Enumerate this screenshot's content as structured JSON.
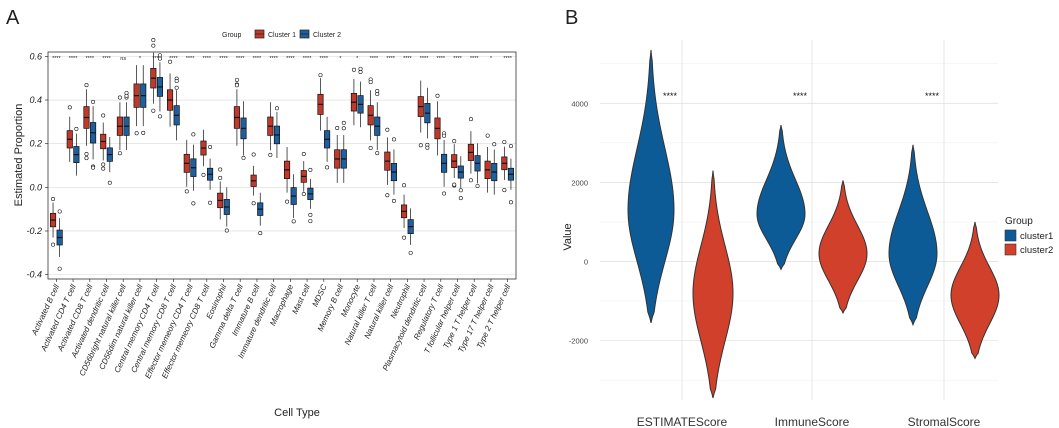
{
  "panels": {
    "a_label": "A",
    "b_label": "B"
  },
  "colors": {
    "cluster1": "#C0392B",
    "cluster2": "#1F5F9E",
    "violet1": "#0D5B96",
    "violet2": "#D0402B"
  },
  "chart_data": [
    {
      "type": "box",
      "panel": "A",
      "title": "",
      "xlabel": "Cell Type",
      "ylabel": "Estimated Proportion",
      "ylim": [
        -0.42,
        0.62
      ],
      "yticks": [
        -0.4,
        -0.2,
        0.0,
        0.2,
        0.4,
        0.6
      ],
      "ytick_labels": [
        "-0.4",
        "-0.2",
        "0.0",
        "0.2",
        "0.4",
        "0.6"
      ],
      "legend": {
        "title": "Group",
        "entries": [
          "Cluster 1",
          "Cluster 2"
        ],
        "position": "top"
      },
      "categories": [
        "Activated B cell",
        "Activated CD4 T cell",
        "Activated CD8 T cell",
        "Activated dendritic cell",
        "CD56bright natural killer cell",
        "CD56dim natural killer cell",
        "Central memory CD4 T cell",
        "Central memory CD8 T cell",
        "Effector memeory CD4 T cell",
        "Effector memeory CD8 T cell",
        "Eosinophil",
        "Gamma delta T cell",
        "Immature  B cell",
        "Immature dendritic cell",
        "Macrophage",
        "Mast cell",
        "MDSC",
        "Memory B cell",
        "Monocyte",
        "Natural killer T cell",
        "Natural killer cell",
        "Neutrophil",
        "Plasmacytoid dendritic cell",
        "Regulatory T cell",
        "T follicular helper cell",
        "Type 1 T helper cell",
        "Type 17 T helper cell",
        "Type 2 T helper cell"
      ],
      "significance": [
        "****",
        "****",
        "****",
        "****",
        "ns",
        "*",
        "****",
        "****",
        "****",
        "****",
        "****",
        "****",
        "****",
        "****",
        "****",
        "****",
        "****",
        "*",
        "*",
        "****",
        "****",
        "****",
        "****",
        "****",
        "****",
        "****",
        "*",
        "****"
      ],
      "series": [
        {
          "name": "Cluster 1",
          "median": [
            -0.15,
            0.22,
            0.32,
            0.21,
            0.28,
            0.42,
            0.5,
            0.4,
            0.11,
            0.18,
            -0.06,
            0.32,
            0.03,
            0.28,
            0.08,
            0.05,
            0.38,
            0.13,
            0.39,
            0.33,
            0.12,
            -0.11,
            0.37,
            0.27,
            0.12,
            0.16,
            0.08,
            0.11
          ]
        },
        {
          "name": "Cluster 2",
          "median": [
            -0.23,
            0.15,
            0.25,
            0.15,
            0.28,
            0.42,
            0.46,
            0.33,
            0.09,
            0.06,
            -0.09,
            0.27,
            -0.1,
            0.24,
            -0.04,
            -0.03,
            0.22,
            0.13,
            0.38,
            0.28,
            0.07,
            -0.18,
            0.34,
            0.11,
            0.07,
            0.11,
            0.07,
            0.06
          ]
        }
      ]
    },
    {
      "type": "violin",
      "panel": "B",
      "title": "",
      "xlabel": "",
      "ylabel": "Value",
      "ylim": [
        -3500,
        5600
      ],
      "yticks": [
        -2000,
        0,
        2000,
        4000
      ],
      "ytick_labels": [
        "-2000",
        "0",
        "2000",
        "4000"
      ],
      "categories": [
        "ESTIMATEScore",
        "ImmuneScore",
        "StromalScore"
      ],
      "significance": [
        "****",
        "****",
        "****"
      ],
      "legend": {
        "title": "Group",
        "entries": [
          "cluster1",
          "cluster2"
        ],
        "position": "right"
      },
      "series": [
        {
          "name": "cluster1",
          "range": [
            [
              -1550,
              5350
            ],
            [
              -200,
              3450
            ],
            [
              -1600,
              2950
            ]
          ],
          "mode": [
            1300,
            1200,
            200
          ]
        },
        {
          "name": "cluster2",
          "range": [
            [
              -3450,
              2300
            ],
            [
              -1300,
              2050
            ],
            [
              -2450,
              1000
            ]
          ],
          "mode": [
            -800,
            200,
            -850
          ]
        }
      ]
    }
  ]
}
